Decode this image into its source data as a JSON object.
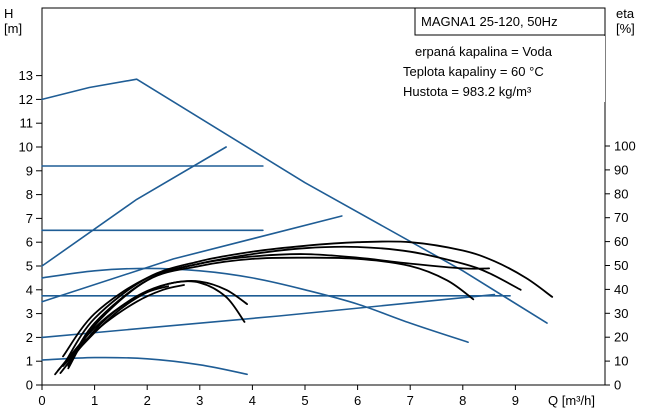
{
  "chart_data": {
    "type": "line",
    "title": "MAGNA1 25-120, 50Hz",
    "fluid_info": [
      "erpaná kapalina = Voda",
      "Teplota kapaliny = 60 °C",
      "Hustota = 983.2 kg/m³"
    ],
    "xlabel": "Q [m³/h]",
    "ylabel_left": [
      "H",
      "[m]"
    ],
    "ylabel_right": [
      "eta",
      "[%]"
    ],
    "xlim": [
      0,
      10.2
    ],
    "ylim": [
      0,
      13.7
    ],
    "y2lim": [
      0,
      100
    ],
    "x_ticks": [
      "0",
      "1",
      "2",
      "3",
      "4",
      "5",
      "6",
      "7",
      "8",
      "9"
    ],
    "y_ticks": [
      "0",
      "1",
      "2",
      "3",
      "4",
      "5",
      "6",
      "7",
      "8",
      "9",
      "10",
      "11",
      "12",
      "13"
    ],
    "y2_ticks": [
      "0",
      "10",
      "20",
      "30",
      "40",
      "50",
      "60",
      "70",
      "80",
      "90",
      "100"
    ],
    "colors": {
      "pump_curves": "#1f5d95",
      "efficiency_curves": "#000000",
      "frame": "#000000"
    },
    "grid": false,
    "series": [
      {
        "kind": "head",
        "x": [
          0,
          0.9,
          1.8,
          5.0,
          8.0,
          9.6
        ],
        "y": [
          12.0,
          12.5,
          12.85,
          8.5,
          4.8,
          2.6
        ]
      },
      {
        "kind": "head",
        "x": [
          0,
          4.2
        ],
        "y": [
          9.2,
          9.2
        ]
      },
      {
        "kind": "head",
        "x": [
          0,
          4.2
        ],
        "y": [
          6.5,
          6.5
        ]
      },
      {
        "kind": "head",
        "x": [
          0,
          8.9
        ],
        "y": [
          3.75,
          3.75
        ]
      },
      {
        "kind": "head",
        "x": [
          0,
          1.8,
          3.5
        ],
        "y": [
          5.0,
          7.8,
          10.0
        ]
      },
      {
        "kind": "head",
        "x": [
          0,
          2.5,
          5.7
        ],
        "y": [
          3.5,
          5.3,
          7.1
        ]
      },
      {
        "kind": "head",
        "x": [
          0,
          4.5,
          8.6
        ],
        "y": [
          2.0,
          2.9,
          3.8
        ]
      },
      {
        "kind": "head",
        "x": [
          0,
          1.0,
          2.0,
          3.0,
          4.0,
          5.0,
          6.0,
          7.0,
          8.1
        ],
        "y": [
          4.5,
          4.8,
          4.9,
          4.8,
          4.5,
          4.0,
          3.4,
          2.6,
          1.8
        ]
      },
      {
        "kind": "head",
        "x": [
          0,
          1.0,
          2.0,
          3.0,
          3.9
        ],
        "y": [
          1.05,
          1.15,
          1.1,
          0.85,
          0.45
        ]
      },
      {
        "kind": "eta",
        "x": [
          0.4,
          1.0,
          2.0,
          3.0,
          4.0,
          5.0,
          6.0,
          7.0,
          8.0,
          8.5,
          9.1
        ],
        "y": [
          1.2,
          3.0,
          4.5,
          5.1,
          5.5,
          5.75,
          5.8,
          5.6,
          5.1,
          4.7,
          4.0
        ]
      },
      {
        "kind": "eta",
        "x": [
          0.45,
          1.0,
          2.0,
          3.0,
          4.0,
          5.0,
          6.0,
          7.0,
          8.0,
          8.6,
          9.2,
          9.7
        ],
        "y": [
          1.0,
          2.8,
          4.5,
          5.2,
          5.6,
          5.85,
          6.0,
          6.0,
          5.65,
          5.2,
          4.5,
          3.7
        ]
      },
      {
        "kind": "eta",
        "x": [
          0.5,
          1.0,
          2.0,
          3.0,
          4.0,
          5.0,
          6.0,
          7.0,
          8.0,
          8.5
        ],
        "y": [
          0.8,
          2.6,
          4.4,
          5.1,
          5.4,
          5.5,
          5.35,
          5.1,
          4.9,
          4.9
        ]
      },
      {
        "kind": "eta",
        "x": [
          0.5,
          1.0,
          2.0,
          3.0,
          4.0,
          5.0,
          6.0,
          7.0,
          7.7,
          8.2
        ],
        "y": [
          0.7,
          2.5,
          4.4,
          5.0,
          5.3,
          5.35,
          5.3,
          5.0,
          4.4,
          3.6
        ]
      },
      {
        "kind": "eta",
        "x": [
          0.35,
          1.0,
          1.5,
          2.0,
          2.5,
          3.0,
          3.5,
          3.9
        ],
        "y": [
          0.5,
          2.3,
          3.3,
          3.95,
          4.3,
          4.35,
          4.0,
          3.4
        ]
      },
      {
        "kind": "eta",
        "x": [
          0.4,
          1.0,
          1.5,
          2.0,
          2.5,
          3.0,
          3.5,
          3.85
        ],
        "y": [
          0.8,
          2.2,
          3.2,
          3.9,
          4.3,
          4.3,
          3.7,
          2.65
        ]
      },
      {
        "kind": "eta",
        "x": [
          0.3,
          0.7,
          1.2,
          1.8,
          2.3,
          2.7
        ],
        "y": [
          0.6,
          1.6,
          2.6,
          3.5,
          4.0,
          4.2
        ]
      },
      {
        "kind": "eta",
        "x": [
          0.25,
          0.6,
          1.0,
          1.5,
          2.0,
          2.4
        ],
        "y": [
          0.45,
          1.4,
          2.4,
          3.3,
          3.9,
          4.15
        ]
      }
    ]
  }
}
